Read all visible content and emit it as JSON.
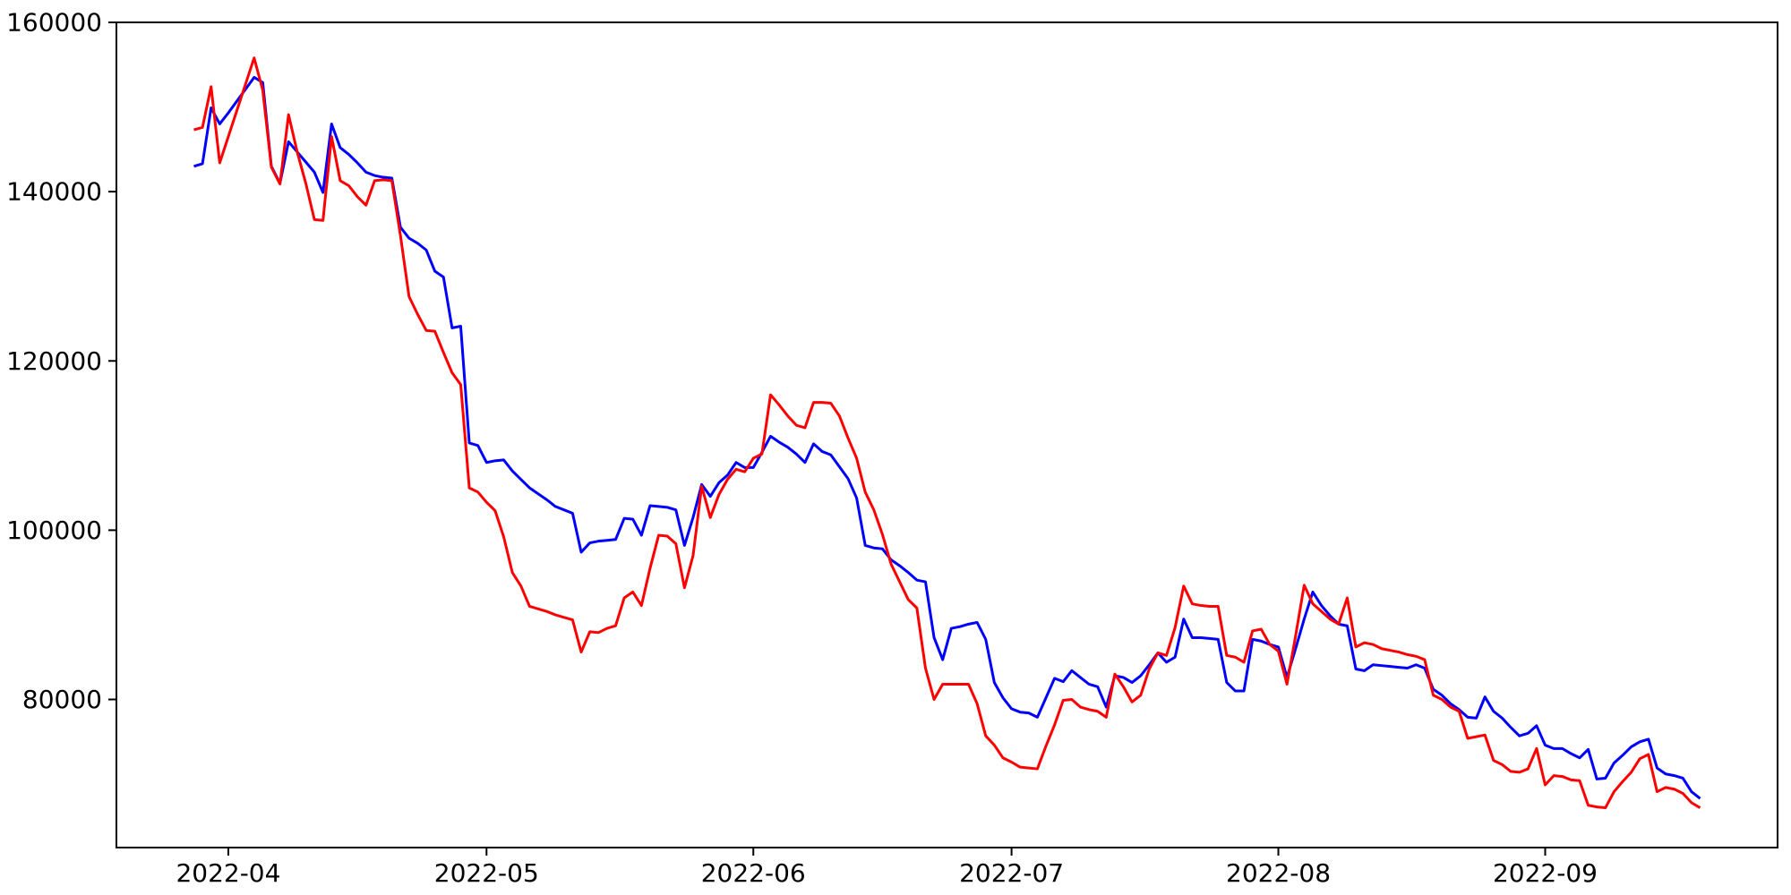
{
  "chart_data": {
    "type": "line",
    "title": "",
    "xlabel": "",
    "ylabel": "",
    "grid": false,
    "legend": "none",
    "background_color": "#ffffff",
    "spine_color": "#000000",
    "tick_color": "#000000",
    "axes": {
      "xlim": [
        "2022-03-19",
        "2022-09-28"
      ],
      "ylim": [
        62500,
        160000
      ],
      "x_ticks": [
        {
          "label": "2022-04",
          "date": "2022-04-01"
        },
        {
          "label": "2022-05",
          "date": "2022-05-01"
        },
        {
          "label": "2022-06",
          "date": "2022-06-01"
        },
        {
          "label": "2022-07",
          "date": "2022-07-01"
        },
        {
          "label": "2022-08",
          "date": "2022-08-01"
        },
        {
          "label": "2022-09",
          "date": "2022-09-01"
        }
      ],
      "y_ticks": [
        {
          "label": "80000",
          "value": 80000
        },
        {
          "label": "100000",
          "value": 100000
        },
        {
          "label": "120000",
          "value": 120000
        },
        {
          "label": "140000",
          "value": 140000
        },
        {
          "label": "160000",
          "value": 160000
        }
      ]
    },
    "dates": [
      "2022-03-28",
      "2022-03-29",
      "2022-03-30",
      "2022-03-31",
      "2022-04-01",
      "2022-04-02",
      "2022-04-03",
      "2022-04-04",
      "2022-04-05",
      "2022-04-06",
      "2022-04-07",
      "2022-04-08",
      "2022-04-09",
      "2022-04-10",
      "2022-04-11",
      "2022-04-12",
      "2022-04-13",
      "2022-04-14",
      "2022-04-15",
      "2022-04-16",
      "2022-04-17",
      "2022-04-18",
      "2022-04-19",
      "2022-04-20",
      "2022-04-21",
      "2022-04-22",
      "2022-04-23",
      "2022-04-24",
      "2022-04-25",
      "2022-04-26",
      "2022-04-27",
      "2022-04-28",
      "2022-04-29",
      "2022-04-30",
      "2022-05-01",
      "2022-05-02",
      "2022-05-03",
      "2022-05-04",
      "2022-05-05",
      "2022-05-06",
      "2022-05-07",
      "2022-05-08",
      "2022-05-09",
      "2022-05-10",
      "2022-05-11",
      "2022-05-12",
      "2022-05-13",
      "2022-05-14",
      "2022-05-15",
      "2022-05-16",
      "2022-05-17",
      "2022-05-18",
      "2022-05-19",
      "2022-05-20",
      "2022-05-21",
      "2022-05-22",
      "2022-05-23",
      "2022-05-24",
      "2022-05-25",
      "2022-05-26",
      "2022-05-27",
      "2022-05-28",
      "2022-05-29",
      "2022-05-30",
      "2022-05-31",
      "2022-06-01",
      "2022-06-02",
      "2022-06-03",
      "2022-06-04",
      "2022-06-05",
      "2022-06-06",
      "2022-06-07",
      "2022-06-08",
      "2022-06-09",
      "2022-06-10",
      "2022-06-11",
      "2022-06-12",
      "2022-06-13",
      "2022-06-14",
      "2022-06-15",
      "2022-06-16",
      "2022-06-17",
      "2022-06-18",
      "2022-06-19",
      "2022-06-20",
      "2022-06-21",
      "2022-06-22",
      "2022-06-23",
      "2022-06-24",
      "2022-06-25",
      "2022-06-26",
      "2022-06-27",
      "2022-06-28",
      "2022-06-29",
      "2022-06-30",
      "2022-07-01",
      "2022-07-02",
      "2022-07-03",
      "2022-07-04",
      "2022-07-05",
      "2022-07-06",
      "2022-07-07",
      "2022-07-08",
      "2022-07-09",
      "2022-07-10",
      "2022-07-11",
      "2022-07-12",
      "2022-07-13",
      "2022-07-14",
      "2022-07-15",
      "2022-07-16",
      "2022-07-17",
      "2022-07-18",
      "2022-07-19",
      "2022-07-20",
      "2022-07-21",
      "2022-07-22",
      "2022-07-23",
      "2022-07-24",
      "2022-07-25",
      "2022-07-26",
      "2022-07-27",
      "2022-07-28",
      "2022-07-29",
      "2022-07-30",
      "2022-07-31",
      "2022-08-01",
      "2022-08-02",
      "2022-08-03",
      "2022-08-04",
      "2022-08-05",
      "2022-08-06",
      "2022-08-07",
      "2022-08-08",
      "2022-08-09",
      "2022-08-10",
      "2022-08-11",
      "2022-08-12",
      "2022-08-13",
      "2022-08-14",
      "2022-08-15",
      "2022-08-16",
      "2022-08-17",
      "2022-08-18",
      "2022-08-19",
      "2022-08-20",
      "2022-08-21",
      "2022-08-22",
      "2022-08-23",
      "2022-08-24",
      "2022-08-25",
      "2022-08-26",
      "2022-08-27",
      "2022-08-28",
      "2022-08-29",
      "2022-08-30",
      "2022-08-31",
      "2022-09-01",
      "2022-09-02",
      "2022-09-03",
      "2022-09-04",
      "2022-09-05",
      "2022-09-06",
      "2022-09-07",
      "2022-09-08",
      "2022-09-09",
      "2022-09-10",
      "2022-09-11",
      "2022-09-12",
      "2022-09-13",
      "2022-09-14",
      "2022-09-15",
      "2022-09-16",
      "2022-09-17",
      "2022-09-18",
      "2022-09-19"
    ],
    "series": [
      {
        "name": "series-blue",
        "color": "#0000ff",
        "values": [
          143000,
          143300,
          149900,
          148000,
          149300,
          150700,
          152100,
          153500,
          152900,
          143000,
          141000,
          145900,
          144700,
          143500,
          142300,
          139900,
          148000,
          145200,
          144400,
          143400,
          142300,
          141900,
          141700,
          141600,
          135800,
          134500,
          133900,
          133100,
          130600,
          129900,
          123900,
          124100,
          110300,
          110000,
          108000,
          108200,
          108300,
          107000,
          106000,
          105000,
          104300,
          103600,
          102800,
          102400,
          102000,
          97400,
          98500,
          98700,
          98800,
          98900,
          101400,
          101300,
          99400,
          102900,
          102800,
          102700,
          102400,
          98200,
          101500,
          105400,
          104000,
          105600,
          106500,
          108000,
          107400,
          107400,
          109200,
          111100,
          110400,
          109800,
          109000,
          108000,
          110200,
          109300,
          108900,
          107500,
          106100,
          103800,
          98200,
          97900,
          97800,
          96500,
          95800,
          95000,
          94100,
          93900,
          87300,
          84700,
          88400,
          88600,
          88900,
          89100,
          87100,
          82000,
          80200,
          78900,
          78500,
          78400,
          77900,
          80200,
          82500,
          82100,
          83400,
          82600,
          81800,
          81500,
          79100,
          82800,
          82600,
          82000,
          82800,
          84100,
          85500,
          84400,
          85000,
          89500,
          87300,
          87300,
          87200,
          87100,
          82000,
          81000,
          81000,
          87100,
          86900,
          86500,
          86200,
          82600,
          86000,
          89500,
          92700,
          91100,
          89900,
          88900,
          88700,
          83600,
          83400,
          84100,
          84000,
          83900,
          83800,
          83700,
          84100,
          83700,
          81200,
          80500,
          79500,
          78800,
          77900,
          77800,
          80300,
          78600,
          77800,
          76700,
          75700,
          76000,
          76900,
          74600,
          74200,
          74200,
          73600,
          73100,
          74100,
          70600,
          70700,
          72500,
          73400,
          74400,
          75000,
          75300,
          71900,
          71200,
          71000,
          70700,
          69100,
          68300
        ]
      },
      {
        "name": "series-red",
        "color": "#ff0000",
        "values": [
          147300,
          147600,
          152400,
          143400,
          146500,
          149600,
          152700,
          155800,
          152000,
          142900,
          140900,
          149100,
          144700,
          141000,
          136700,
          136600,
          146500,
          141300,
          140700,
          139400,
          138400,
          141300,
          141400,
          141300,
          134800,
          127600,
          125500,
          123600,
          123500,
          121000,
          118600,
          117200,
          105000,
          104500,
          103300,
          102300,
          99200,
          95000,
          93400,
          91000,
          90700,
          90400,
          90000,
          89700,
          89400,
          85600,
          88000,
          87900,
          88400,
          88700,
          92000,
          92700,
          91100,
          95500,
          99400,
          99300,
          98400,
          93200,
          97000,
          105200,
          101500,
          104200,
          106000,
          107200,
          106900,
          108500,
          109000,
          116000,
          114800,
          113500,
          112400,
          112100,
          115100,
          115100,
          115000,
          113500,
          110900,
          108500,
          104500,
          102400,
          99500,
          96000,
          93900,
          91800,
          90800,
          83700,
          80000,
          81800,
          81800,
          81800,
          81800,
          79500,
          75700,
          74600,
          73100,
          72600,
          72000,
          71900,
          71800,
          74500,
          77000,
          79900,
          80000,
          79100,
          78800,
          78600,
          77900,
          83000,
          81500,
          79700,
          80500,
          83600,
          85500,
          85200,
          88500,
          93400,
          91300,
          91100,
          91000,
          91000,
          85200,
          85000,
          84400,
          88100,
          88300,
          86500,
          85700,
          81800,
          87500,
          93500,
          91300,
          90400,
          89500,
          88900,
          92000,
          86200,
          86700,
          86500,
          86000,
          85800,
          85600,
          85300,
          85100,
          84700,
          80500,
          80000,
          79100,
          78600,
          75400,
          75600,
          75800,
          72800,
          72300,
          71500,
          71400,
          71800,
          74200,
          69900,
          71000,
          70900,
          70500,
          70400,
          67500,
          67300,
          67200,
          69100,
          70300,
          71400,
          73000,
          73500,
          69100,
          69600,
          69400,
          68900,
          67800,
          67200
        ]
      }
    ]
  }
}
